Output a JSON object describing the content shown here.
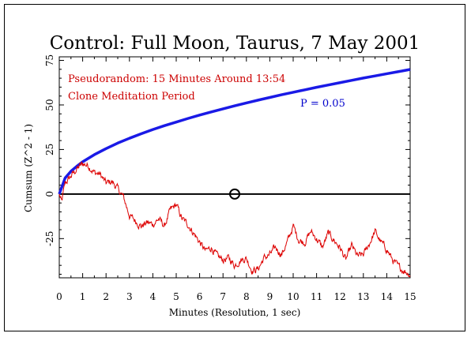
{
  "colors": {
    "background": "#ffffff",
    "axis": "#000000",
    "cumsum_trace": "#dd0000",
    "probability_envelope": "#1a1ae6",
    "red_text": "#cc0000",
    "blue_text": "#0000cc"
  },
  "chart_data": {
    "type": "line",
    "title": "Control: Full Moon, Taurus, 7 May 2001",
    "xlabel": "Minutes (Resolution, 1 sec)",
    "ylabel": "Cumsum (Z^2 - 1)",
    "xlim": [
      0,
      15
    ],
    "ylim": [
      -47,
      77
    ],
    "x_ticks": [
      "0",
      "1",
      "2",
      "3",
      "4",
      "5",
      "6",
      "7",
      "8",
      "9",
      "10",
      "11",
      "12",
      "13",
      "14",
      "15"
    ],
    "y_ticks": [
      "75",
      "50",
      "25",
      "0",
      "-25"
    ],
    "y_tick_values": [
      75,
      50,
      25,
      0,
      -25
    ],
    "grid": false,
    "annotations": {
      "line1": "Pseudorandom: 15 Minutes Around 13:54",
      "line2": "Clone Meditation Period",
      "probability": "P = 0.05"
    },
    "series": [
      {
        "color": "#dd0000",
        "x": [
          0,
          0.1,
          0.25,
          0.5,
          0.75,
          1.0,
          1.25,
          1.5,
          1.75,
          2.0,
          2.25,
          2.5,
          2.75,
          3.0,
          3.25,
          3.5,
          3.75,
          4.0,
          4.25,
          4.5,
          4.75,
          5.0,
          5.25,
          5.5,
          5.75,
          6.0,
          6.25,
          6.5,
          6.75,
          7.0,
          7.25,
          7.5,
          7.75,
          8.0,
          8.25,
          8.5,
          8.75,
          9.0,
          9.25,
          9.5,
          9.75,
          10.0,
          10.25,
          10.5,
          10.75,
          11.0,
          11.25,
          11.5,
          11.75,
          12.0,
          12.25,
          12.5,
          12.75,
          13.0,
          13.25,
          13.5,
          13.75,
          14.0,
          14.25,
          14.5,
          14.75,
          15.0
        ],
        "values": [
          0,
          -5,
          6,
          10,
          14,
          17,
          16,
          12,
          11,
          6,
          7,
          3,
          -2,
          -12,
          -15,
          -18,
          -16,
          -17,
          -14,
          -18,
          -9,
          -6,
          -14,
          -17,
          -22,
          -27,
          -32,
          -30,
          -35,
          -37,
          -36,
          -40,
          -37,
          -36,
          -43,
          -42,
          -36,
          -34,
          -30,
          -34,
          -27,
          -18,
          -26,
          -27,
          -21,
          -25,
          -30,
          -22,
          -26,
          -30,
          -37,
          -29,
          -35,
          -34,
          -28,
          -21,
          -27,
          -31,
          -37,
          -41,
          -43,
          -45
        ]
      },
      {
        "color": "#1a1ae6",
        "x": [
          0,
          0.25,
          0.5,
          0.75,
          1,
          1.5,
          2,
          2.5,
          3,
          3.5,
          4,
          4.5,
          5,
          5.5,
          6,
          6.5,
          7,
          7.5,
          8,
          8.5,
          9,
          9.5,
          10,
          10.5,
          11,
          11.5,
          12,
          12.5,
          13,
          13.5,
          14,
          14.5,
          15
        ],
        "values": [
          0,
          9.0,
          12.8,
          15.6,
          18.1,
          22.1,
          25.5,
          28.6,
          31.3,
          33.8,
          36.2,
          38.4,
          40.4,
          42.4,
          44.3,
          46.1,
          47.8,
          49.5,
          51.1,
          52.7,
          54.2,
          55.7,
          57.1,
          58.5,
          59.9,
          61.2,
          62.5,
          63.8,
          65.1,
          66.3,
          67.5,
          68.7,
          69.9
        ]
      }
    ],
    "zero_line": 0,
    "marker": {
      "x": 7.5,
      "y": 0
    }
  }
}
